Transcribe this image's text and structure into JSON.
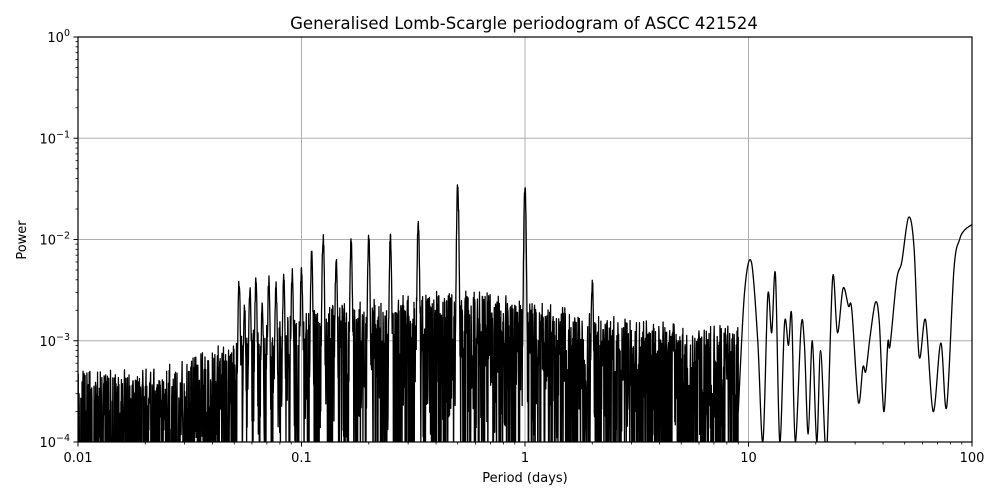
{
  "figure": {
    "title": "Generalised Lomb-Scargle periodogram of ASCC 421524",
    "xlabel": "Period (days)",
    "ylabel": "Power"
  },
  "chart_data": {
    "type": "line",
    "title": "Generalised Lomb-Scargle periodogram of ASCC 421524",
    "xlabel": "Period (days)",
    "ylabel": "Power",
    "xscale": "log",
    "yscale": "log",
    "xlim": [
      0.01,
      100
    ],
    "ylim": [
      0.0001,
      1
    ],
    "grid": true,
    "line_color": "#000000",
    "grid_color": "#b0b0b0",
    "xticks": [
      {
        "value": 0.01,
        "label": "0.01"
      },
      {
        "value": 0.1,
        "label": "0.1"
      },
      {
        "value": 1,
        "label": "1"
      },
      {
        "value": 10,
        "label": "10"
      },
      {
        "value": 100,
        "label": "100"
      }
    ],
    "yticks": [
      {
        "value": 0.0001,
        "base": "10",
        "exp": "−4"
      },
      {
        "value": 0.001,
        "base": "10",
        "exp": "−3"
      },
      {
        "value": 0.01,
        "base": "10",
        "exp": "−2"
      },
      {
        "value": 0.1,
        "base": "10",
        "exp": "−1"
      },
      {
        "value": 1,
        "base": "10",
        "exp": "0"
      }
    ],
    "noise_envelope": [
      {
        "period": 0.01,
        "power": 0.00028
      },
      {
        "period": 0.02,
        "power": 0.0003
      },
      {
        "period": 0.03,
        "power": 0.00035
      },
      {
        "period": 0.05,
        "power": 0.0006
      },
      {
        "period": 0.08,
        "power": 0.0009
      },
      {
        "period": 0.12,
        "power": 0.0012
      },
      {
        "period": 0.2,
        "power": 0.0014
      },
      {
        "period": 0.3,
        "power": 0.0016
      },
      {
        "period": 0.5,
        "power": 0.0018
      },
      {
        "period": 0.8,
        "power": 0.0016
      },
      {
        "period": 1.5,
        "power": 0.0012
      },
      {
        "period": 3.0,
        "power": 0.0009
      },
      {
        "period": 6.0,
        "power": 0.0008
      }
    ],
    "alias_peaks": [
      {
        "period": 0.0526,
        "power": 0.0045
      },
      {
        "period": 0.0556,
        "power": 0.0026
      },
      {
        "period": 0.0588,
        "power": 0.0038
      },
      {
        "period": 0.0625,
        "power": 0.0045
      },
      {
        "period": 0.0667,
        "power": 0.0025
      },
      {
        "period": 0.0714,
        "power": 0.0045
      },
      {
        "period": 0.0769,
        "power": 0.0043
      },
      {
        "period": 0.0833,
        "power": 0.0047
      },
      {
        "period": 0.0909,
        "power": 0.0052
      },
      {
        "period": 0.1,
        "power": 0.0062
      },
      {
        "period": 0.111,
        "power": 0.0085
      },
      {
        "period": 0.125,
        "power": 0.013
      },
      {
        "period": 0.143,
        "power": 0.0075
      },
      {
        "period": 0.1667,
        "power": 0.012
      },
      {
        "period": 0.2,
        "power": 0.0123
      },
      {
        "period": 0.25,
        "power": 0.0125
      },
      {
        "period": 0.333,
        "power": 0.0175
      },
      {
        "period": 0.5,
        "power": 0.039
      },
      {
        "period": 1.0,
        "power": 0.037
      },
      {
        "period": 2.0,
        "power": 0.0045
      }
    ],
    "long_period_curve": [
      {
        "period": 9.0,
        "power": 0.0002
      },
      {
        "period": 9.6,
        "power": 0.003
      },
      {
        "period": 10.3,
        "power": 0.006
      },
      {
        "period": 11.0,
        "power": 0.001
      },
      {
        "period": 11.6,
        "power": 0.0001
      },
      {
        "period": 12.2,
        "power": 0.0028
      },
      {
        "period": 12.7,
        "power": 0.0012
      },
      {
        "period": 13.2,
        "power": 0.0045
      },
      {
        "period": 13.8,
        "power": 0.0001
      },
      {
        "period": 14.5,
        "power": 0.0015
      },
      {
        "period": 15.1,
        "power": 0.0009
      },
      {
        "period": 15.6,
        "power": 0.0018
      },
      {
        "period": 16.2,
        "power": 0.0001
      },
      {
        "period": 17.2,
        "power": 0.0014
      },
      {
        "period": 17.8,
        "power": 0.0009
      },
      {
        "period": 18.5,
        "power": 0.00012
      },
      {
        "period": 19.3,
        "power": 0.001
      },
      {
        "period": 20.2,
        "power": 0.0001
      },
      {
        "period": 21.0,
        "power": 0.0008
      },
      {
        "period": 22.0,
        "power": 0.0001
      },
      {
        "period": 22.5,
        "power": 0.0001
      },
      {
        "period": 23.8,
        "power": 0.0042
      },
      {
        "period": 25.0,
        "power": 0.0012
      },
      {
        "period": 26.5,
        "power": 0.0033
      },
      {
        "period": 28.0,
        "power": 0.0022
      },
      {
        "period": 29.0,
        "power": 0.002
      },
      {
        "period": 31.0,
        "power": 0.00025
      },
      {
        "period": 32.5,
        "power": 0.00055
      },
      {
        "period": 33.5,
        "power": 0.0005
      },
      {
        "period": 35.0,
        "power": 0.0011
      },
      {
        "period": 37.0,
        "power": 0.0024
      },
      {
        "period": 38.5,
        "power": 0.0015
      },
      {
        "period": 40.3,
        "power": 0.0002
      },
      {
        "period": 42.0,
        "power": 0.00095
      },
      {
        "period": 43.0,
        "power": 0.0009
      },
      {
        "period": 46.0,
        "power": 0.004
      },
      {
        "period": 48.5,
        "power": 0.006
      },
      {
        "period": 52.0,
        "power": 0.0165
      },
      {
        "period": 55.0,
        "power": 0.0085
      },
      {
        "period": 58.0,
        "power": 0.0007
      },
      {
        "period": 62.0,
        "power": 0.0016
      },
      {
        "period": 67.0,
        "power": 0.0002
      },
      {
        "period": 72.5,
        "power": 0.00095
      },
      {
        "period": 77.0,
        "power": 0.00022
      },
      {
        "period": 83.0,
        "power": 0.005
      },
      {
        "period": 88.0,
        "power": 0.01
      },
      {
        "period": 93.0,
        "power": 0.0125
      },
      {
        "period": 100.0,
        "power": 0.014
      }
    ]
  }
}
